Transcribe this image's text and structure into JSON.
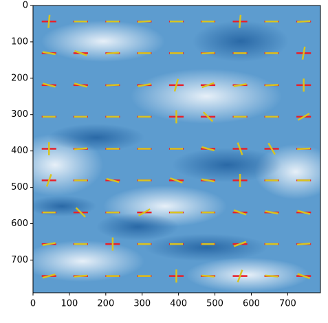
{
  "chart_data": {
    "type": "image",
    "xlim": [
      0,
      790
    ],
    "ylim": [
      790,
      0
    ],
    "xticks": [
      0,
      100,
      200,
      300,
      400,
      500,
      600,
      700
    ],
    "yticks": [
      0,
      100,
      200,
      300,
      400,
      500,
      600,
      700
    ],
    "markers": {
      "x": [
        44,
        131,
        219,
        306,
        394,
        481,
        569,
        656,
        744
      ],
      "y": [
        44,
        131,
        219,
        306,
        394,
        481,
        569,
        656,
        744
      ],
      "angles": [
        [
          85,
          0,
          0,
          3,
          0,
          0,
          85,
          0,
          3
        ],
        [
          -10,
          -20,
          5,
          0,
          0,
          3,
          0,
          0,
          80
        ],
        [
          -15,
          -15,
          3,
          10,
          75,
          20,
          10,
          3,
          90
        ],
        [
          0,
          0,
          0,
          0,
          90,
          -45,
          0,
          0,
          30
        ],
        [
          90,
          5,
          0,
          0,
          0,
          -15,
          -70,
          -60,
          3
        ],
        [
          70,
          0,
          -15,
          0,
          -20,
          -10,
          90,
          0,
          0
        ],
        [
          0,
          -45,
          0,
          30,
          0,
          0,
          -20,
          -10,
          -15
        ],
        [
          10,
          0,
          90,
          0,
          0,
          0,
          20,
          0,
          5
        ],
        [
          15,
          5,
          0,
          0,
          90,
          -5,
          70,
          -5,
          -20
        ]
      ],
      "reference_color": "#e8202a",
      "color": "#d8c420"
    }
  }
}
